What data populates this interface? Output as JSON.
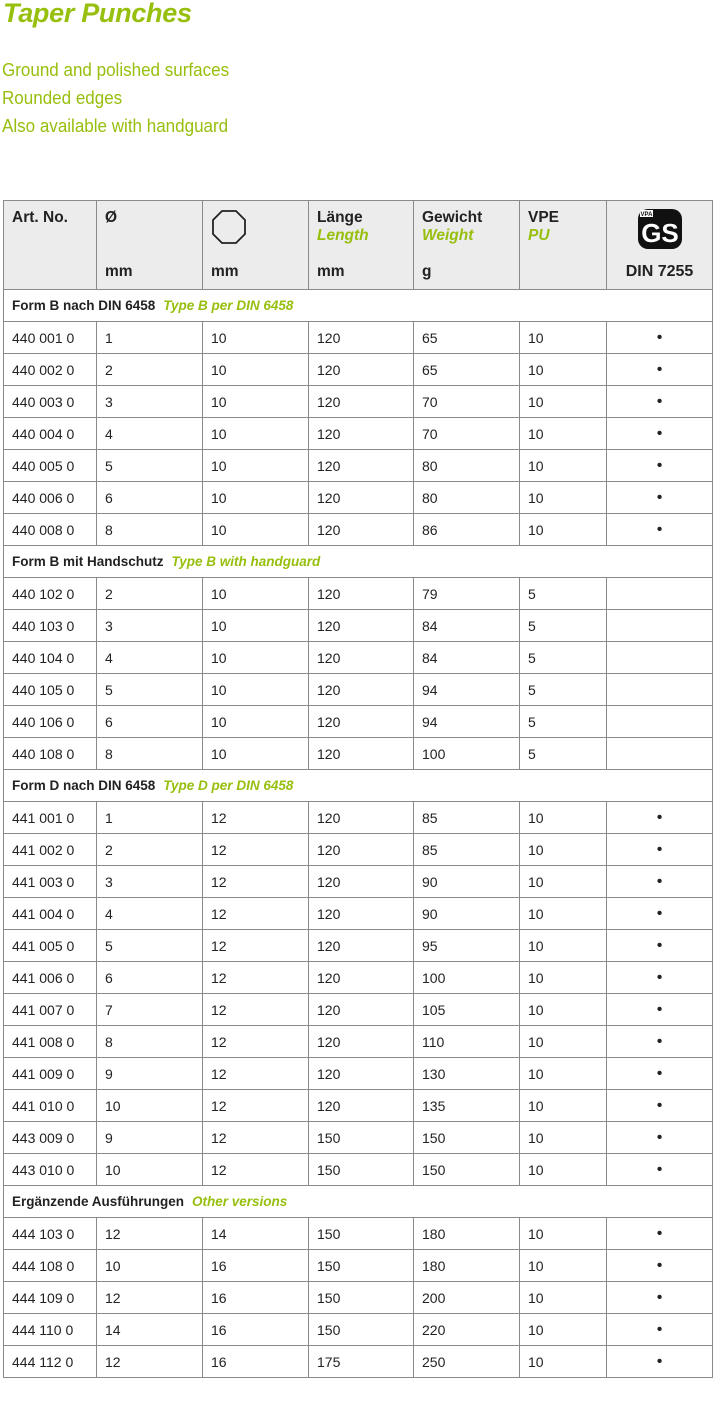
{
  "title": "Taper Punches",
  "features": [
    "Ground and polished surfaces",
    "Rounded edges",
    "Also available with handguard"
  ],
  "header": {
    "art_no": "Art. No.",
    "diameter": "Ø",
    "diameter_unit": "mm",
    "octagon_icon": "octagon-icon",
    "octagon_unit": "mm",
    "length_de": "Länge",
    "length_en": "Length",
    "length_unit": "mm",
    "weight_de": "Gewicht",
    "weight_en": "Weight",
    "weight_unit": "g",
    "pu_de": "VPE",
    "pu_en": "PU",
    "gs_logo": "GS",
    "gs_logo_small": "VPA",
    "din": "DIN 7255"
  },
  "accent_color": "#97bf0d",
  "sections": [
    {
      "de": "Form B nach DIN 6458",
      "en": "Type B per DIN 6458",
      "rows": [
        [
          "440 001 0",
          "1",
          "10",
          "120",
          "65",
          "10",
          true
        ],
        [
          "440 002 0",
          "2",
          "10",
          "120",
          "65",
          "10",
          true
        ],
        [
          "440 003 0",
          "3",
          "10",
          "120",
          "70",
          "10",
          true
        ],
        [
          "440 004 0",
          "4",
          "10",
          "120",
          "70",
          "10",
          true
        ],
        [
          "440 005 0",
          "5",
          "10",
          "120",
          "80",
          "10",
          true
        ],
        [
          "440 006 0",
          "6",
          "10",
          "120",
          "80",
          "10",
          true
        ],
        [
          "440 008 0",
          "8",
          "10",
          "120",
          "86",
          "10",
          true
        ]
      ]
    },
    {
      "de": "Form B mit Handschutz",
      "en": "Type B with handguard",
      "rows": [
        [
          "440 102 0",
          "2",
          "10",
          "120",
          "79",
          "5",
          false
        ],
        [
          "440 103 0",
          "3",
          "10",
          "120",
          "84",
          "5",
          false
        ],
        [
          "440 104 0",
          "4",
          "10",
          "120",
          "84",
          "5",
          false
        ],
        [
          "440 105 0",
          "5",
          "10",
          "120",
          "94",
          "5",
          false
        ],
        [
          "440 106 0",
          "6",
          "10",
          "120",
          "94",
          "5",
          false
        ],
        [
          "440 108 0",
          "8",
          "10",
          "120",
          "100",
          "5",
          false
        ]
      ]
    },
    {
      "de": "Form D nach DIN 6458",
      "en": "Type D per DIN 6458",
      "rows": [
        [
          "441 001 0",
          "1",
          "12",
          "120",
          "85",
          "10",
          true
        ],
        [
          "441 002 0",
          "2",
          "12",
          "120",
          "85",
          "10",
          true
        ],
        [
          "441 003 0",
          "3",
          "12",
          "120",
          "90",
          "10",
          true
        ],
        [
          "441 004 0",
          "4",
          "12",
          "120",
          "90",
          "10",
          true
        ],
        [
          "441 005 0",
          "5",
          "12",
          "120",
          "95",
          "10",
          true
        ],
        [
          "441 006 0",
          "6",
          "12",
          "120",
          "100",
          "10",
          true
        ],
        [
          "441 007 0",
          "7",
          "12",
          "120",
          "105",
          "10",
          true
        ],
        [
          "441 008 0",
          "8",
          "12",
          "120",
          "110",
          "10",
          true
        ],
        [
          "441 009 0",
          "9",
          "12",
          "120",
          "130",
          "10",
          true
        ],
        [
          "441 010 0",
          "10",
          "12",
          "120",
          "135",
          "10",
          true
        ],
        [
          "443 009 0",
          "9",
          "12",
          "150",
          "150",
          "10",
          true
        ],
        [
          "443 010 0",
          "10",
          "12",
          "150",
          "150",
          "10",
          true
        ]
      ]
    },
    {
      "de": "Ergänzende Ausführungen",
      "en": "Other versions",
      "rows": [
        [
          "444 103 0",
          "12",
          "14",
          "150",
          "180",
          "10",
          true
        ],
        [
          "444 108 0",
          "10",
          "16",
          "150",
          "180",
          "10",
          true
        ],
        [
          "444 109 0",
          "12",
          "16",
          "150",
          "200",
          "10",
          true
        ],
        [
          "444 110 0",
          "14",
          "16",
          "150",
          "220",
          "10",
          true
        ],
        [
          "444 112 0",
          "12",
          "16",
          "175",
          "250",
          "10",
          true
        ]
      ]
    }
  ],
  "gs_mark": "•"
}
